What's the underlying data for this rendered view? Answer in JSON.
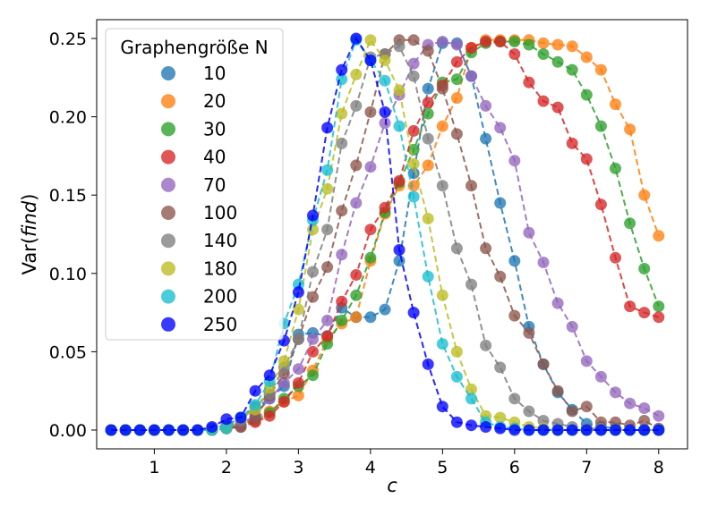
{
  "chart_data": {
    "type": "scatter",
    "xlabel": "c",
    "ylabel_prefix": "Var(",
    "ylabel_italic": "find",
    "ylabel_suffix": ")",
    "xlim": [
      0.2,
      8.4
    ],
    "ylim": [
      -0.012,
      0.262
    ],
    "xticks": [
      1,
      2,
      3,
      4,
      5,
      6,
      7,
      8
    ],
    "xtick_labels": [
      "1",
      "2",
      "3",
      "4",
      "5",
      "6",
      "7",
      "8"
    ],
    "yticks": [
      0.0,
      0.05,
      0.1,
      0.15,
      0.2,
      0.25
    ],
    "ytick_labels": [
      "0.00",
      "0.05",
      "0.10",
      "0.15",
      "0.20",
      "0.25"
    ],
    "grid": false,
    "legend": {
      "title": "Graphengröße N",
      "placement": "upper-left"
    },
    "line_style": "dashed",
    "marker": "circle",
    "x": [
      0.4,
      0.6,
      0.8,
      1.0,
      1.2,
      1.4,
      1.6,
      1.8,
      2.0,
      2.2,
      2.4,
      2.6,
      2.8,
      3.0,
      3.2,
      3.4,
      3.6,
      3.8,
      4.0,
      4.2,
      4.4,
      4.6,
      4.8,
      5.0,
      5.2,
      5.4,
      5.6,
      5.8,
      6.0,
      6.2,
      6.4,
      6.6,
      6.8,
      7.0,
      7.2,
      7.4,
      7.6,
      7.8,
      8.0
    ],
    "series": [
      {
        "name": "10",
        "color": "#1f77b4",
        "values": [
          0,
          0,
          0,
          0,
          0,
          0,
          0,
          0.001,
          0.003,
          0.008,
          0.014,
          0.02,
          0.028,
          0.061,
          0.062,
          0.06,
          0.078,
          0.072,
          0.072,
          0.077,
          0.108,
          0.164,
          0.218,
          0.247,
          0.247,
          0.226,
          0.186,
          0.145,
          0.108,
          0.066,
          0.042,
          0.024,
          0.013,
          0.004,
          0.002,
          0.001,
          0,
          0,
          0
        ]
      },
      {
        "name": "20",
        "color": "#ff7f0e",
        "values": [
          0,
          0,
          0,
          0,
          0,
          0,
          0,
          0,
          0.001,
          0.004,
          0.008,
          0.012,
          0.018,
          0.022,
          0.038,
          0.058,
          0.068,
          0.072,
          0.108,
          0.138,
          0.156,
          0.156,
          0.169,
          0.194,
          0.212,
          0.244,
          0.249,
          0.249,
          0.249,
          0.249,
          0.247,
          0.246,
          0.245,
          0.238,
          0.23,
          0.208,
          0.192,
          0.15,
          0.124
        ]
      },
      {
        "name": "30",
        "color": "#2ca02c",
        "values": [
          0,
          0,
          0,
          0,
          0,
          0,
          0,
          0,
          0.001,
          0.003,
          0.006,
          0.011,
          0.02,
          0.028,
          0.035,
          0.055,
          0.07,
          0.086,
          0.11,
          0.139,
          0.158,
          0.179,
          0.202,
          0.222,
          0.224,
          0.241,
          0.247,
          0.248,
          0.248,
          0.246,
          0.24,
          0.235,
          0.23,
          0.214,
          0.194,
          0.167,
          0.132,
          0.103,
          0.079
        ]
      },
      {
        "name": "40",
        "color": "#d62728",
        "values": [
          0,
          0,
          0,
          0,
          0,
          0,
          0,
          0,
          0.001,
          0.002,
          0.005,
          0.009,
          0.018,
          0.03,
          0.05,
          0.06,
          0.082,
          0.099,
          0.128,
          0.142,
          0.159,
          0.191,
          0.209,
          0.22,
          0.235,
          0.244,
          0.248,
          0.248,
          0.24,
          0.222,
          0.21,
          0.206,
          0.183,
          0.173,
          0.144,
          0.11,
          0.079,
          0.075,
          0.072
        ]
      },
      {
        "name": "70",
        "color": "#9467bd",
        "values": [
          0,
          0,
          0,
          0,
          0,
          0,
          0,
          0,
          0.001,
          0.003,
          0.01,
          0.02,
          0.03,
          0.039,
          0.058,
          0.07,
          0.112,
          0.145,
          0.168,
          0.196,
          0.214,
          0.234,
          0.246,
          0.248,
          0.246,
          0.226,
          0.207,
          0.193,
          0.172,
          0.126,
          0.107,
          0.081,
          0.066,
          0.044,
          0.034,
          0.024,
          0.017,
          0.014,
          0.009
        ]
      },
      {
        "name": "100",
        "color": "#8c564b",
        "values": [
          0,
          0,
          0,
          0,
          0,
          0,
          0,
          0,
          0.001,
          0.002,
          0.008,
          0.022,
          0.036,
          0.058,
          0.085,
          0.104,
          0.14,
          0.169,
          0.203,
          0.24,
          0.249,
          0.249,
          0.242,
          0.218,
          0.189,
          0.156,
          0.116,
          0.098,
          0.073,
          0.062,
          0.042,
          0.025,
          0.012,
          0.015,
          0.005,
          0.005,
          0.003,
          0.006,
          0.001
        ]
      },
      {
        "name": "140",
        "color": "#7f7f7f",
        "values": [
          0,
          0,
          0,
          0,
          0,
          0,
          0,
          0,
          0.001,
          0.006,
          0.015,
          0.023,
          0.04,
          0.058,
          0.101,
          0.128,
          0.183,
          0.207,
          0.238,
          0.24,
          0.245,
          0.226,
          0.186,
          0.156,
          0.116,
          0.093,
          0.054,
          0.04,
          0.02,
          0.012,
          0.006,
          0.004,
          0.002,
          0.001,
          0.001,
          0,
          0,
          0,
          0
        ]
      },
      {
        "name": "180",
        "color": "#bcbd22",
        "values": [
          0,
          0,
          0,
          0,
          0,
          0,
          0,
          0,
          0.001,
          0.008,
          0.013,
          0.027,
          0.044,
          0.077,
          0.128,
          0.154,
          0.202,
          0.227,
          0.249,
          0.236,
          0.217,
          0.17,
          0.135,
          0.086,
          0.05,
          0.026,
          0.009,
          0.008,
          0.005,
          0.002,
          0.001,
          0,
          0,
          0,
          0,
          0,
          0,
          0,
          0
        ]
      },
      {
        "name": "200",
        "color": "#17becf",
        "values": [
          0,
          0,
          0,
          0,
          0,
          0,
          0,
          0,
          0.001,
          0.008,
          0.016,
          0.031,
          0.068,
          0.093,
          0.134,
          0.166,
          0.224,
          0.249,
          0.236,
          0.223,
          0.194,
          0.149,
          0.098,
          0.055,
          0.034,
          0.02,
          0.005,
          0.002,
          0.001,
          0,
          0,
          0,
          0,
          0,
          0,
          0,
          0,
          0,
          0
        ]
      },
      {
        "name": "250",
        "color": "#0000ff",
        "values": [
          0,
          0,
          0,
          0,
          0,
          0,
          0,
          0.002,
          0.007,
          0.008,
          0.025,
          0.035,
          0.057,
          0.088,
          0.137,
          0.193,
          0.23,
          0.25,
          0.236,
          0.203,
          0.115,
          0.075,
          0.042,
          0.015,
          0.005,
          0.003,
          0.002,
          0.001,
          0,
          0,
          0,
          0,
          0,
          0,
          0,
          0,
          0,
          0,
          0
        ]
      }
    ]
  }
}
